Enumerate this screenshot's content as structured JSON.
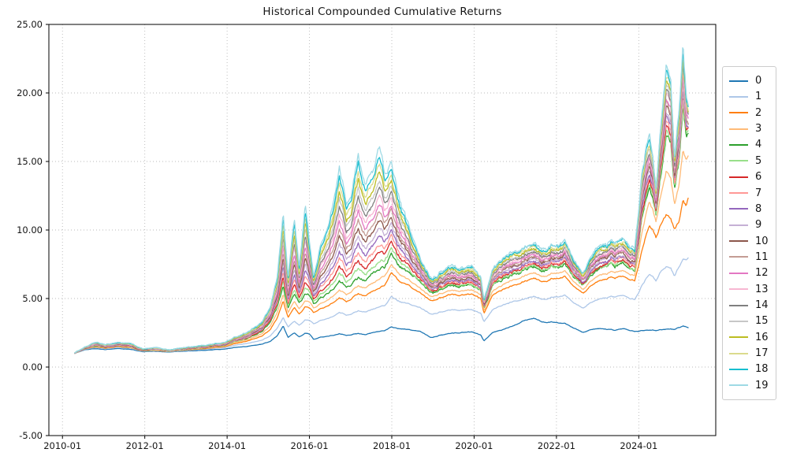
{
  "chart_data": {
    "type": "line",
    "title": "Historical Compounded Cumulative Returns",
    "xlabel": "",
    "ylabel": "",
    "grid": {
      "style": "dotted",
      "color": "#b8b8b8",
      "on": true
    },
    "legend": {
      "position": "right-outside",
      "border_color": "#cccccc"
    },
    "x_axis": {
      "tick_years": [
        2010,
        2012,
        2014,
        2016,
        2018,
        2020,
        2022,
        2024
      ],
      "tick_labels": [
        "2010-01",
        "2012-01",
        "2014-01",
        "2016-01",
        "2018-01",
        "2020-01",
        "2022-01",
        "2024-01"
      ],
      "range_years": [
        2009.67,
        2025.87
      ]
    },
    "y_axis": {
      "ticks": [
        -5,
        0,
        5,
        10,
        15,
        20,
        25
      ],
      "tick_labels": [
        "-5.00",
        "0.00",
        "5.00",
        "10.00",
        "15.00",
        "20.00",
        "25.00"
      ],
      "range": [
        -5,
        25
      ]
    },
    "band_note": "Series 5-18 lie evenly spaced between series 4 (band bottom) and series 19 (band top); band_blend is the fraction between those two envelopes.",
    "anchor_years": [
      2010.3,
      2010.55,
      2010.8,
      2011.05,
      2011.35,
      2011.65,
      2011.95,
      2012.25,
      2012.6,
      2012.95,
      2013.3,
      2013.65,
      2013.95,
      2014.25,
      2014.55,
      2014.85,
      2015.05,
      2015.22,
      2015.36,
      2015.48,
      2015.63,
      2015.75,
      2015.9,
      2016.0,
      2016.1,
      2016.3,
      2016.5,
      2016.73,
      2016.9,
      2017.05,
      2017.18,
      2017.35,
      2017.55,
      2017.7,
      2017.85,
      2018.0,
      2018.2,
      2018.45,
      2018.7,
      2018.95,
      2019.2,
      2019.45,
      2019.7,
      2019.95,
      2020.16,
      2020.24,
      2020.45,
      2020.7,
      2020.95,
      2021.2,
      2021.45,
      2021.7,
      2021.95,
      2022.2,
      2022.45,
      2022.65,
      2022.9,
      2023.15,
      2023.4,
      2023.65,
      2023.9,
      2024.08,
      2024.25,
      2024.42,
      2024.55,
      2024.67,
      2024.78,
      2024.87,
      2024.97,
      2025.07,
      2025.15,
      2025.2
    ],
    "series": [
      {
        "label": "0",
        "color": "#1f77b4",
        "values": [
          1.0,
          1.28,
          1.33,
          1.27,
          1.36,
          1.28,
          1.12,
          1.14,
          1.1,
          1.16,
          1.21,
          1.26,
          1.32,
          1.45,
          1.54,
          1.66,
          1.85,
          2.3,
          3.0,
          2.15,
          2.5,
          2.2,
          2.48,
          2.4,
          2.02,
          2.2,
          2.28,
          2.4,
          2.32,
          2.4,
          2.46,
          2.4,
          2.5,
          2.6,
          2.7,
          2.9,
          2.78,
          2.7,
          2.58,
          2.18,
          2.35,
          2.48,
          2.52,
          2.58,
          2.35,
          1.9,
          2.5,
          2.72,
          3.05,
          3.45,
          3.6,
          3.28,
          3.3,
          3.2,
          2.85,
          2.55,
          2.82,
          2.76,
          2.7,
          2.8,
          2.66,
          2.68,
          2.74,
          2.68,
          2.76,
          2.8,
          2.78,
          2.72,
          2.9,
          3.0,
          2.95,
          2.9
        ]
      },
      {
        "label": "1",
        "color": "#aec7e8",
        "values": [
          1.0,
          1.32,
          1.42,
          1.33,
          1.45,
          1.36,
          1.16,
          1.18,
          1.13,
          1.21,
          1.28,
          1.35,
          1.43,
          1.62,
          1.76,
          1.95,
          2.25,
          2.85,
          3.6,
          2.9,
          3.35,
          3.05,
          3.45,
          3.4,
          3.15,
          3.45,
          3.6,
          3.95,
          3.8,
          3.95,
          4.1,
          4.05,
          4.2,
          4.4,
          4.55,
          5.1,
          4.75,
          4.55,
          4.3,
          3.9,
          4.05,
          4.18,
          4.15,
          4.2,
          3.95,
          3.3,
          4.15,
          4.5,
          4.85,
          5.05,
          5.2,
          4.95,
          5.15,
          5.25,
          4.7,
          4.35,
          4.9,
          5.0,
          5.15,
          5.2,
          5.0,
          6.0,
          6.9,
          6.35,
          7.1,
          7.4,
          7.2,
          6.6,
          7.3,
          7.9,
          7.8,
          8.0
        ]
      },
      {
        "label": "2",
        "color": "#ff7f0e",
        "values": [
          1.0,
          1.34,
          1.46,
          1.37,
          1.5,
          1.4,
          1.18,
          1.2,
          1.15,
          1.24,
          1.32,
          1.41,
          1.5,
          1.75,
          1.95,
          2.25,
          2.7,
          3.6,
          4.8,
          3.6,
          4.35,
          3.85,
          4.4,
          4.3,
          3.95,
          4.3,
          4.55,
          5.0,
          4.8,
          5.1,
          5.35,
          5.25,
          5.5,
          5.75,
          6.1,
          6.85,
          6.2,
          5.85,
          5.35,
          4.9,
          5.1,
          5.3,
          5.25,
          5.35,
          5.0,
          3.9,
          5.2,
          5.65,
          6.05,
          6.35,
          6.55,
          6.25,
          6.5,
          6.6,
          5.9,
          5.45,
          6.15,
          6.35,
          6.55,
          6.6,
          6.4,
          8.6,
          10.5,
          9.5,
          10.6,
          11.3,
          10.8,
          10.0,
          10.6,
          12.2,
          11.8,
          12.4
        ]
      },
      {
        "label": "3",
        "color": "#ffbb78",
        "values": [
          1.0,
          1.35,
          1.49,
          1.39,
          1.53,
          1.43,
          1.19,
          1.22,
          1.16,
          1.26,
          1.35,
          1.45,
          1.55,
          1.83,
          2.06,
          2.42,
          2.95,
          4.0,
          5.3,
          3.95,
          4.8,
          4.25,
          4.85,
          4.75,
          4.3,
          4.7,
          5.0,
          5.55,
          5.3,
          5.65,
          5.95,
          5.85,
          6.1,
          6.4,
          6.75,
          7.4,
          6.7,
          6.25,
          5.7,
          5.2,
          5.4,
          5.6,
          5.55,
          5.65,
          5.3,
          4.1,
          5.5,
          6.0,
          6.45,
          6.75,
          6.95,
          6.65,
          6.9,
          7.0,
          6.25,
          5.75,
          6.55,
          6.75,
          6.95,
          7.0,
          6.8,
          9.9,
          12.3,
          10.7,
          12.8,
          14.5,
          13.8,
          11.8,
          13.2,
          15.8,
          15.1,
          15.5
        ]
      },
      {
        "label": "4",
        "color": "#2ca02c",
        "values": [
          1.0,
          1.36,
          1.52,
          1.41,
          1.56,
          1.46,
          1.2,
          1.24,
          1.17,
          1.28,
          1.38,
          1.49,
          1.6,
          1.9,
          2.16,
          2.58,
          3.2,
          4.4,
          5.9,
          4.25,
          5.3,
          4.65,
          5.35,
          5.25,
          4.65,
          5.15,
          5.5,
          6.15,
          5.85,
          6.25,
          6.6,
          6.45,
          6.75,
          7.1,
          7.45,
          8.1,
          7.3,
          6.75,
          6.1,
          5.55,
          5.75,
          5.95,
          5.9,
          6.0,
          5.6,
          4.3,
          5.85,
          6.4,
          6.9,
          7.25,
          7.45,
          7.1,
          7.4,
          7.5,
          6.65,
          6.1,
          7.0,
          7.2,
          7.45,
          7.5,
          7.3,
          11.0,
          13.6,
          11.3,
          14.5,
          17.5,
          16.3,
          12.8,
          14.8,
          19.0,
          17.0,
          17.3
        ]
      },
      {
        "label": "5",
        "color": "#98df8a",
        "band_blend": 0.0667
      },
      {
        "label": "6",
        "color": "#d62728",
        "band_blend": 0.1333
      },
      {
        "label": "7",
        "color": "#ff9896",
        "band_blend": 0.2
      },
      {
        "label": "8",
        "color": "#9467bd",
        "band_blend": 0.2667
      },
      {
        "label": "9",
        "color": "#c5b0d5",
        "band_blend": 0.3333
      },
      {
        "label": "10",
        "color": "#8c564b",
        "band_blend": 0.4
      },
      {
        "label": "11",
        "color": "#c49c94",
        "band_blend": 0.4667
      },
      {
        "label": "12",
        "color": "#e377c2",
        "band_blend": 0.5333
      },
      {
        "label": "13",
        "color": "#f7b6d2",
        "band_blend": 0.6
      },
      {
        "label": "14",
        "color": "#7f7f7f",
        "band_blend": 0.6667
      },
      {
        "label": "15",
        "color": "#c7c7c7",
        "band_blend": 0.7333
      },
      {
        "label": "16",
        "color": "#bcbd22",
        "band_blend": 0.8
      },
      {
        "label": "17",
        "color": "#dbdb8d",
        "band_blend": 0.8667
      },
      {
        "label": "18",
        "color": "#17becf",
        "band_blend": 0.9333
      },
      {
        "label": "19",
        "color": "#9edae5",
        "values": [
          1.05,
          1.48,
          1.8,
          1.62,
          1.82,
          1.7,
          1.32,
          1.4,
          1.26,
          1.42,
          1.55,
          1.68,
          1.82,
          2.25,
          2.65,
          3.25,
          4.3,
          6.6,
          11.2,
          6.5,
          10.9,
          7.3,
          11.8,
          9.0,
          6.6,
          9.2,
          10.8,
          14.2,
          12.0,
          13.3,
          15.6,
          13.6,
          14.2,
          16.1,
          14.2,
          14.6,
          12.0,
          9.8,
          7.8,
          6.6,
          7.0,
          7.4,
          7.2,
          7.4,
          6.6,
          4.9,
          7.0,
          7.9,
          8.6,
          9.0,
          9.2,
          8.6,
          9.0,
          9.2,
          7.9,
          7.0,
          8.6,
          8.8,
          9.2,
          9.3,
          8.9,
          14.5,
          17.6,
          13.2,
          18.5,
          22.5,
          21.0,
          15.2,
          18.5,
          23.7,
          20.0,
          19.3
        ]
      }
    ]
  }
}
